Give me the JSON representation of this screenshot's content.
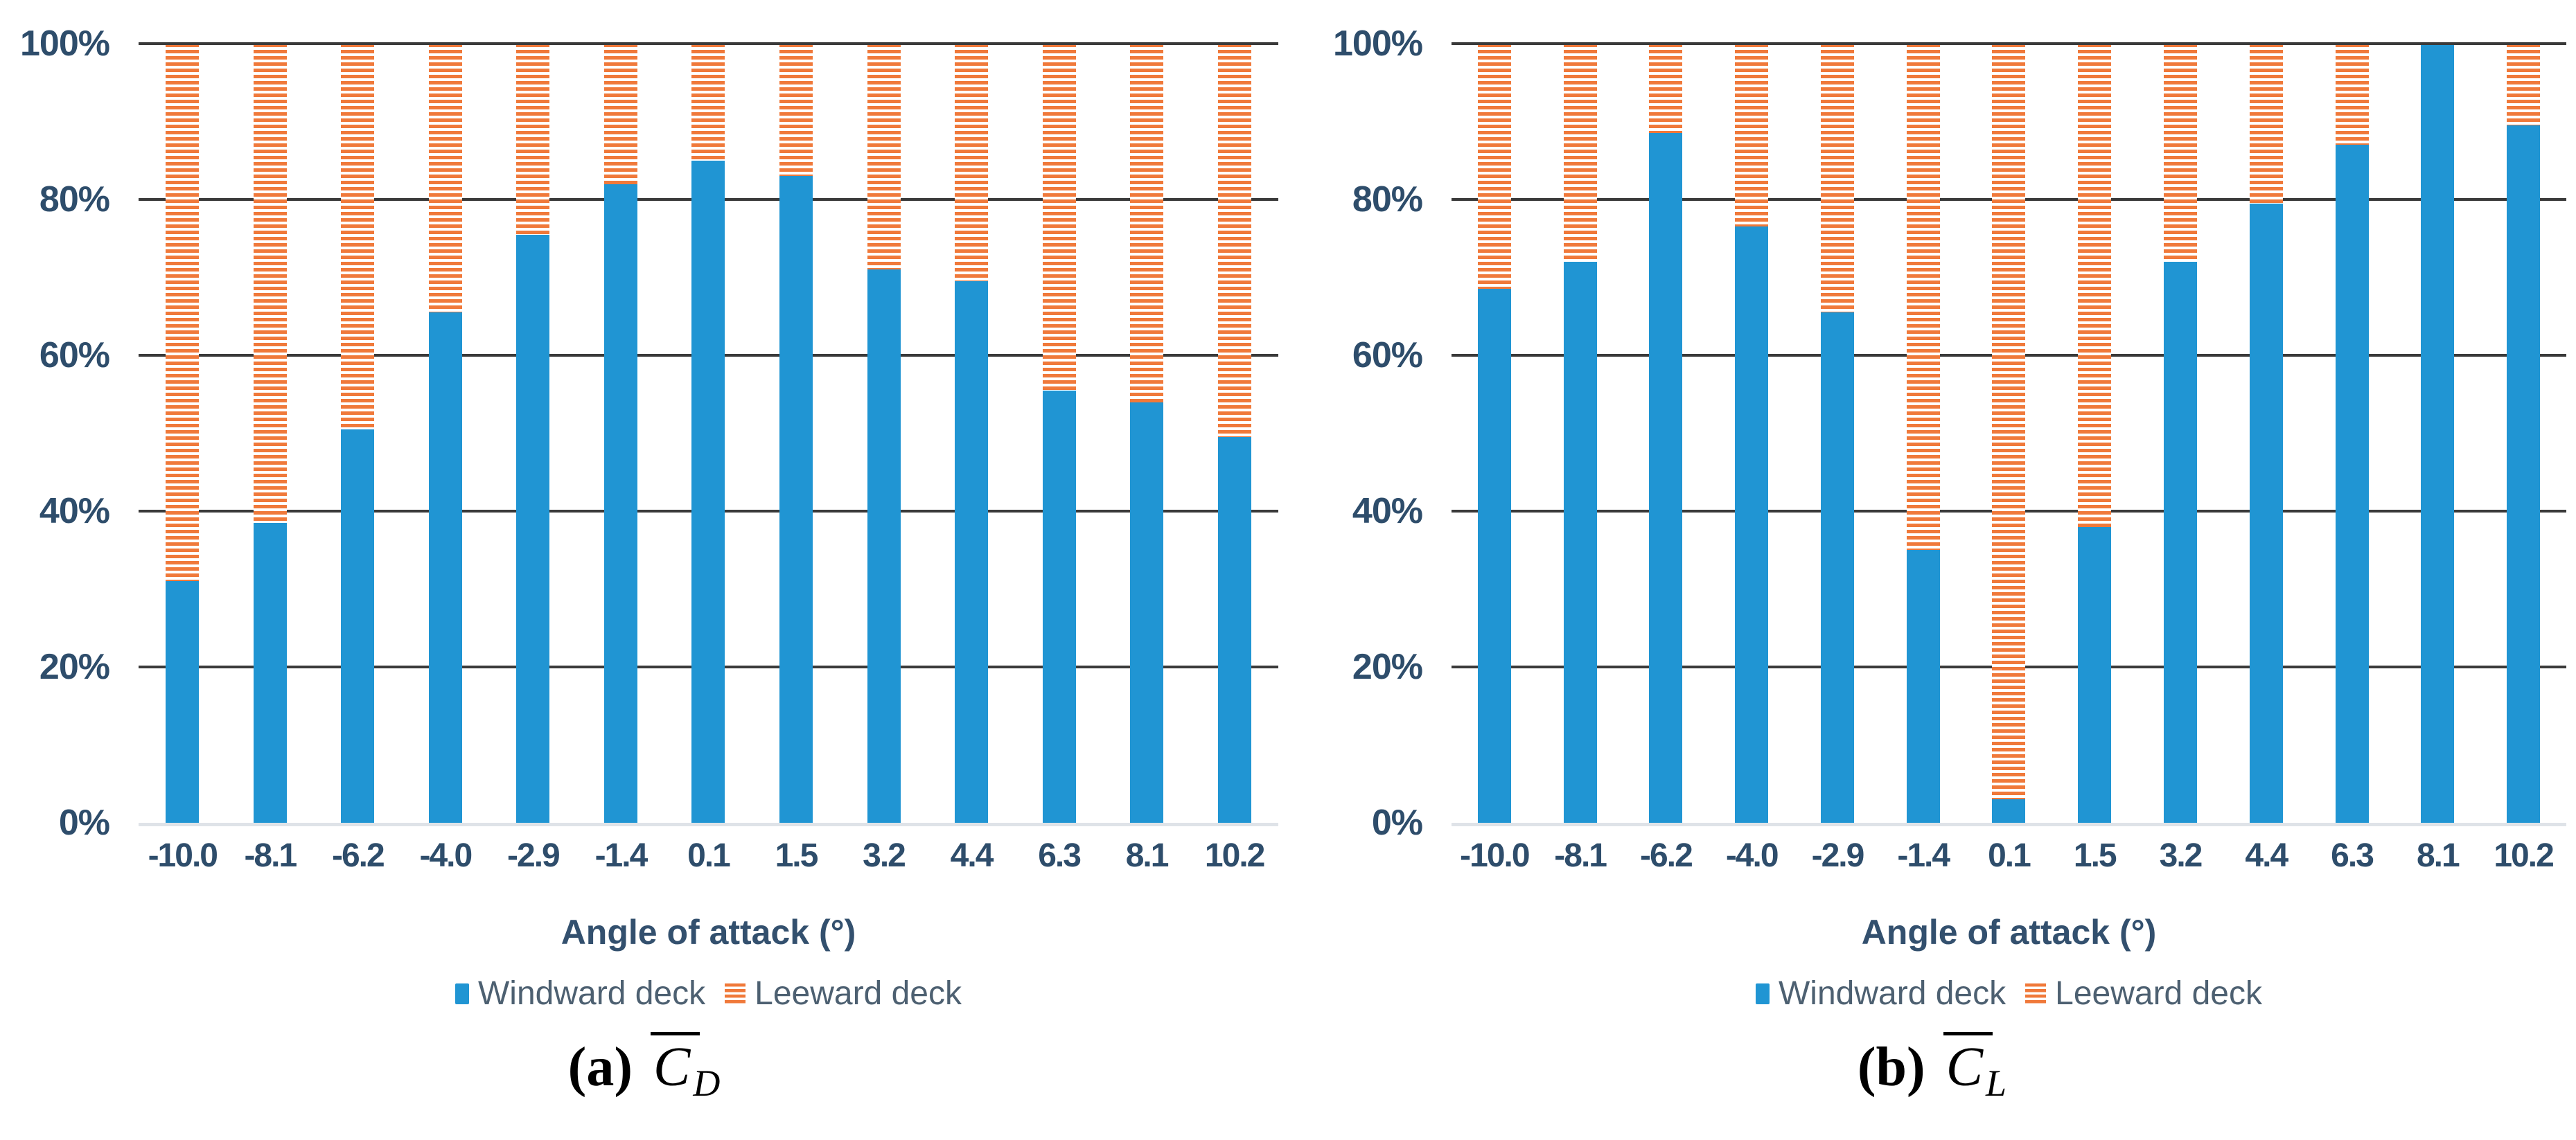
{
  "colors": {
    "windward_blue": "#2095d3",
    "leeward_orange": "#f0793a",
    "gridline": "#3a3a3a",
    "baseline": "#dfe3e8",
    "tick_text": "#2e4d6b",
    "legend_text": "#4d6071",
    "axis_title_text": "#33506e",
    "caption_text": "#000000"
  },
  "charts": [
    {
      "caption": {
        "prefix": "(a)",
        "symbol": "C",
        "sub": "D"
      },
      "x_axis": {
        "label": "Angle of attack (°)"
      },
      "y_axis": {
        "ticks": [
          "100%",
          "80%",
          "60%",
          "40%",
          "20%",
          "0%"
        ]
      },
      "legend": [
        {
          "label": "Windward deck",
          "swatch": "solid"
        },
        {
          "label": "Leeward deck",
          "swatch": "striped"
        }
      ]
    },
    {
      "caption": {
        "prefix": "(b)",
        "symbol": "C",
        "sub": "L"
      },
      "x_axis": {
        "label": "Angle of attack (°)"
      },
      "y_axis": {
        "ticks": [
          "100%",
          "80%",
          "60%",
          "40%",
          "20%",
          "0%"
        ]
      },
      "legend": [
        {
          "label": "Windward deck",
          "swatch": "solid"
        },
        {
          "label": "Leeward deck",
          "swatch": "striped"
        }
      ]
    }
  ],
  "chart_data": [
    {
      "type": "bar",
      "stacked": true,
      "percent": true,
      "title": "(a) C̄_D",
      "xlabel": "Angle of attack (°)",
      "ylabel": "",
      "ylim": [
        0,
        100
      ],
      "yticks": [
        "0%",
        "20%",
        "40%",
        "60%",
        "80%",
        "100%"
      ],
      "grid": true,
      "legend_position": "bottom",
      "categories": [
        "-10.0",
        "-8.1",
        "-6.2",
        "-4.0",
        "-2.9",
        "-1.4",
        "0.1",
        "1.5",
        "3.2",
        "4.4",
        "6.3",
        "8.1",
        "10.2"
      ],
      "series": [
        {
          "name": "Windward deck",
          "values": [
            31,
            38.5,
            50.5,
            65.5,
            75.5,
            82,
            85,
            83,
            71,
            69.5,
            55.5,
            54,
            49.5
          ]
        },
        {
          "name": "Leeward deck",
          "values": [
            69,
            61.5,
            49.5,
            34.5,
            24.5,
            18,
            15,
            17,
            29,
            30.5,
            44.5,
            46,
            50.5
          ]
        }
      ]
    },
    {
      "type": "bar",
      "stacked": true,
      "percent": true,
      "title": "(b) C̄_L",
      "xlabel": "Angle of attack (°)",
      "ylabel": "",
      "ylim": [
        0,
        100
      ],
      "yticks": [
        "0%",
        "20%",
        "40%",
        "60%",
        "80%",
        "100%"
      ],
      "grid": true,
      "legend_position": "bottom",
      "categories": [
        "-10.0",
        "-8.1",
        "-6.2",
        "-4.0",
        "-2.9",
        "-1.4",
        "0.1",
        "1.5",
        "3.2",
        "4.4",
        "6.3",
        "8.1",
        "10.2"
      ],
      "series": [
        {
          "name": "Windward deck",
          "values": [
            68.5,
            72,
            88.5,
            76.5,
            65.5,
            35,
            3,
            38,
            72,
            79.5,
            87,
            100,
            89.5
          ]
        },
        {
          "name": "Leeward deck",
          "values": [
            31.5,
            28,
            11.5,
            23.5,
            34.5,
            65,
            97,
            62,
            28,
            20.5,
            13,
            0,
            10.5
          ]
        }
      ]
    }
  ]
}
